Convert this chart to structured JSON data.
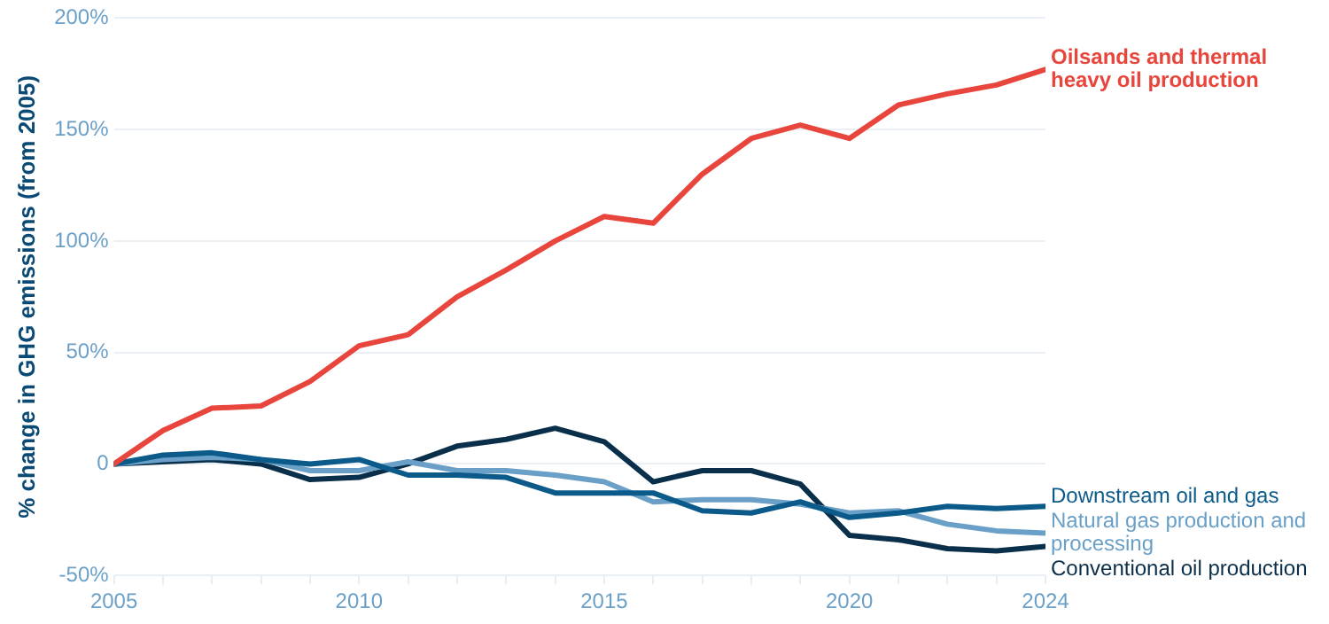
{
  "chart_data": {
    "type": "line",
    "ylabel": "% change in GHG emissions (from 2005)",
    "x": [
      2005,
      2006,
      2007,
      2008,
      2009,
      2010,
      2011,
      2012,
      2013,
      2014,
      2015,
      2016,
      2017,
      2018,
      2019,
      2020,
      2021,
      2022,
      2023,
      2024
    ],
    "xlim": [
      2005,
      2024
    ],
    "xticks": [
      2005,
      {
        "value": 2006,
        "label": null
      },
      {
        "value": 2007,
        "label": null
      },
      {
        "value": 2008,
        "label": null
      },
      {
        "value": 2009,
        "label": null
      },
      2010,
      {
        "value": 2011,
        "label": null
      },
      {
        "value": 2012,
        "label": null
      },
      {
        "value": 2013,
        "label": null
      },
      {
        "value": 2014,
        "label": null
      },
      2015,
      {
        "value": 2016,
        "label": null
      },
      {
        "value": 2017,
        "label": null
      },
      {
        "value": 2018,
        "label": null
      },
      {
        "value": 2019,
        "label": null
      },
      2020,
      {
        "value": 2021,
        "label": null
      },
      {
        "value": 2022,
        "label": null
      },
      {
        "value": 2023,
        "label": null
      },
      2024
    ],
    "ylim": [
      -50,
      200
    ],
    "yticks": [
      {
        "value": -50,
        "label": "-50%"
      },
      {
        "value": 0,
        "label": "0"
      },
      {
        "value": 50,
        "label": "50%"
      },
      {
        "value": 100,
        "label": "100%"
      },
      {
        "value": 150,
        "label": "150%"
      },
      {
        "value": 200,
        "label": "200%"
      }
    ],
    "grid": "y",
    "legend": false,
    "marker": "none",
    "line_style": "solid",
    "series": [
      {
        "name": "Oilsands and thermal heavy oil production",
        "color": "#e8453c",
        "values": [
          0,
          15,
          25,
          26,
          37,
          53,
          58,
          75,
          87,
          100,
          111,
          108,
          130,
          146,
          152,
          146,
          161,
          166,
          170,
          177
        ]
      },
      {
        "name": "Downstream oil and gas",
        "color": "#0b5a8a",
        "values": [
          0,
          4,
          5,
          2,
          0,
          2,
          -5,
          -5,
          -6,
          -13,
          -13,
          -13,
          -21,
          -22,
          -17,
          -24,
          -22,
          -19,
          -20,
          -19
        ]
      },
      {
        "name": "Natural gas production and processing",
        "color": "#6aa0c8",
        "values": [
          0,
          2,
          3,
          2,
          -3,
          -3,
          1,
          -3,
          -3,
          -5,
          -8,
          -17,
          -16,
          -16,
          -18,
          -22,
          -21,
          -27,
          -30,
          -31
        ]
      },
      {
        "name": "Conventional oil production",
        "color": "#0a2f4a",
        "values": [
          0,
          1,
          2,
          0,
          -7,
          -6,
          0,
          8,
          11,
          16,
          10,
          -8,
          -3,
          -3,
          -9,
          -32,
          -34,
          -38,
          -39,
          -37
        ]
      }
    ]
  }
}
